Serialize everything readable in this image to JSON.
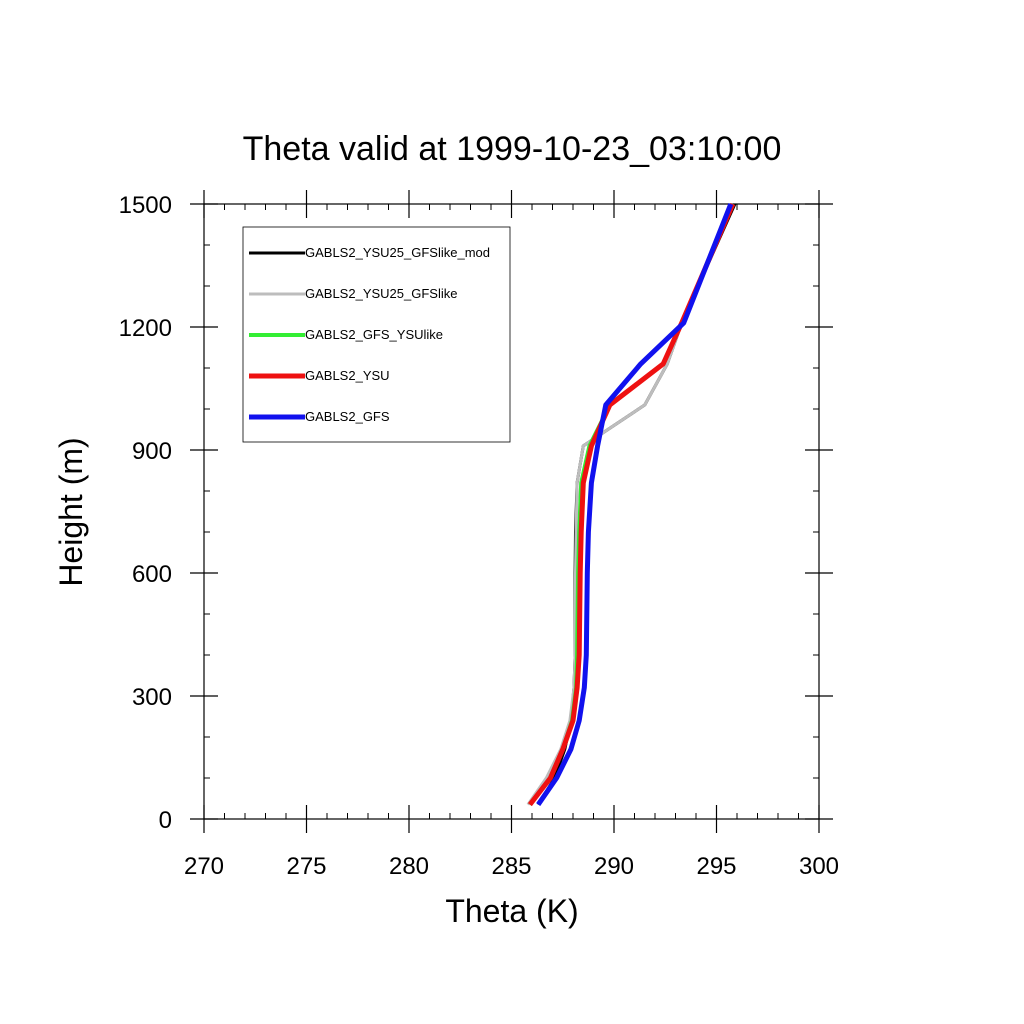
{
  "chart_data": {
    "type": "line",
    "title": "Theta valid at 1999-10-23_03:10:00",
    "xlabel": "Theta (K)",
    "ylabel": "Height (m)",
    "xlim": [
      270,
      300
    ],
    "ylim": [
      0,
      1500
    ],
    "xticks": [
      270,
      275,
      280,
      285,
      290,
      295,
      300
    ],
    "yticks": [
      0,
      300,
      600,
      900,
      1200,
      1500
    ],
    "x_minor_step": 1,
    "y_minor_step": 100,
    "grid": false,
    "legend_position": "top-left",
    "series": [
      {
        "name": "GABLS2_YSU25_GFSlike_mod",
        "color": "#000000",
        "x": [
          286.3,
          287.1,
          287.6,
          287.9,
          288.05,
          288.1,
          288.1,
          288.12,
          288.2,
          288.5,
          291.5,
          292.6,
          293.3,
          295.9
        ],
        "y": [
          35,
          100,
          170,
          240,
          320,
          400,
          600,
          700,
          820,
          910,
          1010,
          1110,
          1210,
          1500
        ]
      },
      {
        "name": "GABLS2_YSU25_GFSlike",
        "color": "#bdbdbd",
        "x": [
          285.8,
          286.7,
          287.4,
          287.85,
          288.05,
          288.1,
          288.12,
          288.15,
          288.2,
          288.5,
          291.5,
          292.6,
          293.3,
          295.8
        ],
        "y": [
          35,
          100,
          170,
          240,
          320,
          400,
          600,
          700,
          820,
          910,
          1010,
          1110,
          1210,
          1500
        ]
      },
      {
        "name": "GABLS2_GFS_YSUlike",
        "color": "#33ee33",
        "x": [
          285.9,
          286.9,
          287.5,
          287.95,
          288.15,
          288.2,
          288.25,
          288.3,
          288.4,
          288.8,
          289.8,
          292.4,
          293.3,
          295.8
        ],
        "y": [
          35,
          100,
          170,
          240,
          320,
          400,
          600,
          700,
          820,
          910,
          1010,
          1110,
          1210,
          1500
        ]
      },
      {
        "name": "GABLS2_YSU",
        "color": "#ee1111",
        "x": [
          285.9,
          286.9,
          287.5,
          288.0,
          288.2,
          288.3,
          288.35,
          288.4,
          288.5,
          288.9,
          289.8,
          292.4,
          293.3,
          295.8
        ],
        "y": [
          35,
          100,
          170,
          240,
          320,
          400,
          600,
          700,
          820,
          910,
          1010,
          1110,
          1210,
          1500
        ]
      },
      {
        "name": "GABLS2_GFS",
        "color": "#1111ee",
        "x": [
          286.3,
          287.2,
          287.9,
          288.3,
          288.55,
          288.65,
          288.7,
          288.75,
          288.9,
          289.2,
          289.6,
          291.3,
          293.4,
          295.7
        ],
        "y": [
          35,
          100,
          170,
          240,
          320,
          400,
          600,
          700,
          820,
          910,
          1010,
          1110,
          1210,
          1500
        ]
      }
    ]
  }
}
